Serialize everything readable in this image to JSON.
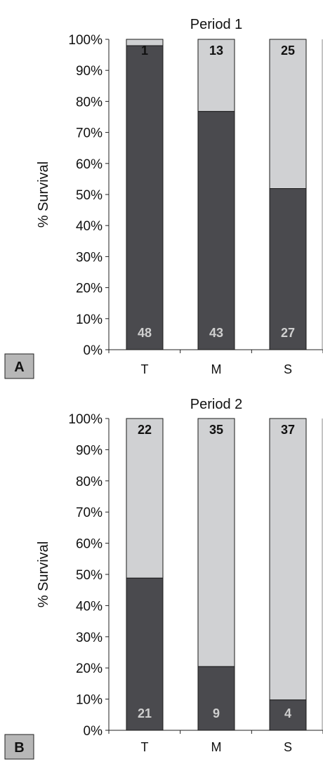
{
  "chart_data": [
    {
      "type": "bar",
      "stacked": true,
      "title": "Period 1",
      "ylabel": "% Survival",
      "ylim": [
        0,
        100
      ],
      "yticks": [
        "0%",
        "10%",
        "20%",
        "30%",
        "40%",
        "50%",
        "60%",
        "70%",
        "80%",
        "90%",
        "100%"
      ],
      "categories": [
        "T",
        "M",
        "S"
      ],
      "series": [
        {
          "color": "#4a4a4e",
          "values": [
            48,
            43,
            27
          ]
        },
        {
          "color": "#d0d1d3",
          "values": [
            1,
            13,
            25
          ]
        }
      ],
      "panel_label": "A"
    },
    {
      "type": "bar",
      "stacked": true,
      "title": "Period 2",
      "ylabel": "% Survival",
      "ylim": [
        0,
        100
      ],
      "yticks": [
        "0%",
        "10%",
        "20%",
        "30%",
        "40%",
        "50%",
        "60%",
        "70%",
        "80%",
        "90%",
        "100%"
      ],
      "categories": [
        "T",
        "M",
        "S"
      ],
      "series": [
        {
          "color": "#4a4a4e",
          "values": [
            21,
            9,
            4
          ]
        },
        {
          "color": "#d0d1d3",
          "values": [
            22,
            35,
            37
          ]
        }
      ],
      "panel_label": "B"
    }
  ]
}
